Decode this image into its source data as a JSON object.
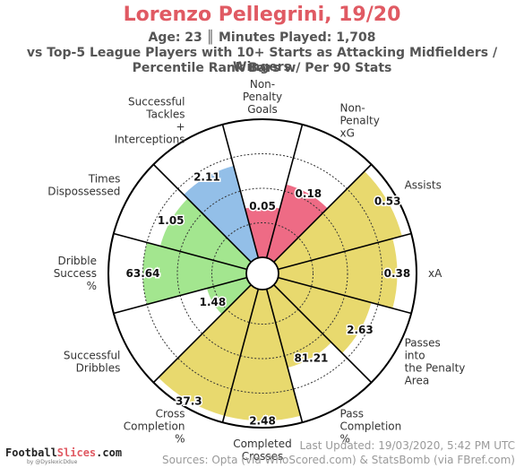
{
  "header": {
    "title": "Lorenzo Pellegrini, 19/20",
    "subtitle1": "Age: 23 ║ Minutes Played: 1,708",
    "subtitle2": "vs Top-5 League Players with 10+ Starts as Attacking Midfielders / Wingers",
    "subtitle3": "Percentile Rank Bars w/ Per 90 Stats"
  },
  "chart_data": {
    "type": "polar-bar",
    "rlim": [
      0,
      100
    ],
    "grid": true,
    "categories": [
      {
        "label": "Non-\nPenalty\nGoals",
        "value": "0.05",
        "percentile": 37,
        "color": "#ee6b85"
      },
      {
        "label": "Non-\nPenalty\nxG",
        "value": "0.18",
        "percentile": 55,
        "color": "#ee6b85"
      },
      {
        "label": "Assists",
        "value": "0.53",
        "percentile": 93,
        "color": "#e8d96e"
      },
      {
        "label": "xA",
        "value": "0.38",
        "percentile": 86,
        "color": "#e8d96e"
      },
      {
        "label": "Passes\ninto\nthe Penalty\nArea",
        "value": "2.63",
        "percentile": 70,
        "color": "#e8d96e"
      },
      {
        "label": "Pass\nCompletion\n%",
        "value": "81.21",
        "percentile": 59,
        "color": "#e8d96e"
      },
      {
        "label": "Completed\nCrosses",
        "value": "2.48",
        "percentile": 95,
        "color": "#e8d96e"
      },
      {
        "label": "Cross\nCompletion\n%",
        "value": "37.3",
        "percentile": 95,
        "color": "#e8d96e"
      },
      {
        "label": "Successful\nDribbles",
        "value": "1.48",
        "percentile": 30,
        "color": "#a3e68f"
      },
      {
        "label": "Dribble\nSuccess\n%",
        "value": "63.64",
        "percentile": 75,
        "color": "#a3e68f"
      },
      {
        "label": "Times\nDispossessed",
        "value": "1.05",
        "percentile": 65,
        "color": "#a3e68f"
      },
      {
        "label": "Successful\nTackles\n+\nInterceptions",
        "value": "2.11",
        "percentile": 69,
        "color": "#93bfe8"
      }
    ]
  },
  "footer": {
    "brand_prefix": "Football",
    "brand_accent": "Slices",
    "brand_suffix": ".com",
    "brand_sub": "by @DyslexicDdue",
    "updated": "Last Updated: 19/03/2020, 5:42 PM UTC",
    "sources": "Sources: Opta (via WhoScored.com) & StatsBomb (via FBref.com)"
  }
}
